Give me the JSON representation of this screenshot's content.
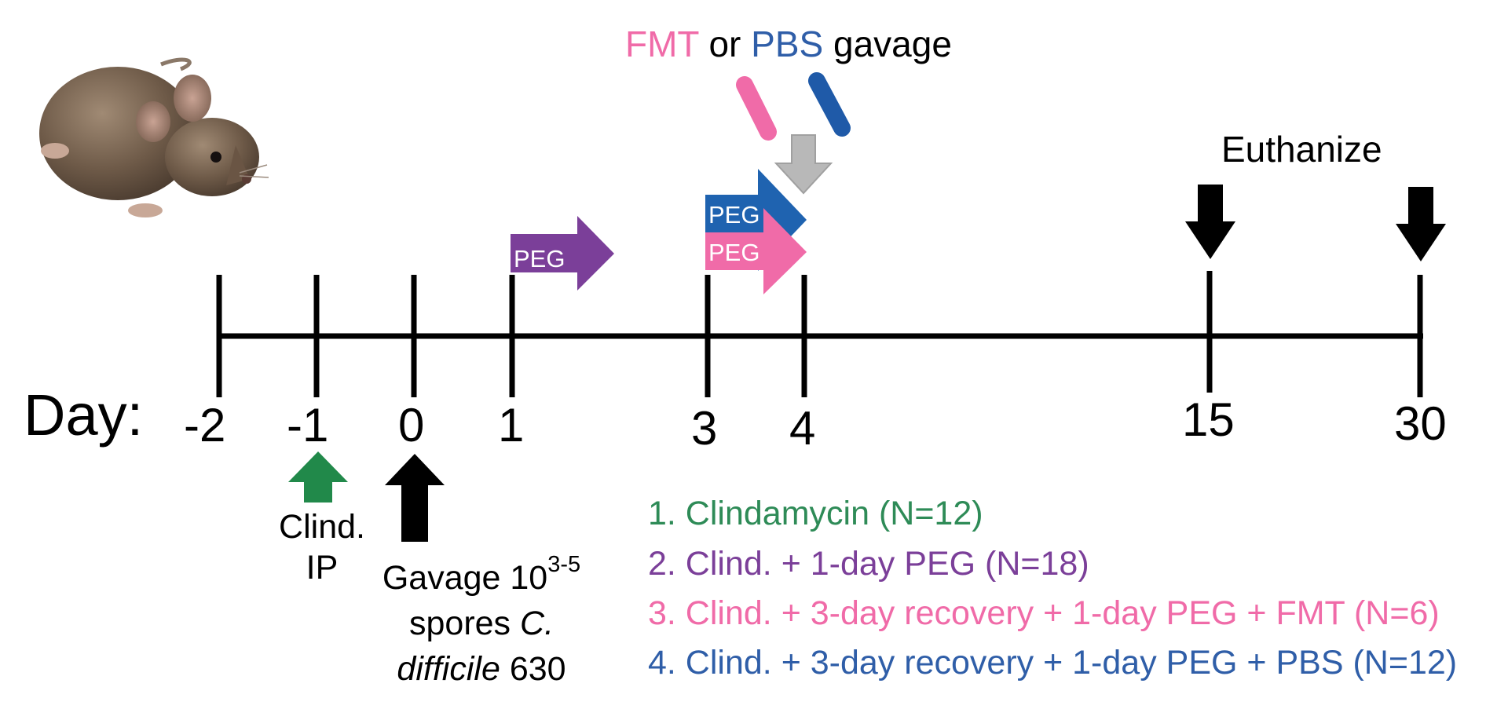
{
  "day_label": "Day:",
  "days": [
    "-2",
    "-1",
    "0",
    "1",
    "3",
    "4",
    "15",
    "30"
  ],
  "mouse_icon": "mouse-photo",
  "top_label": {
    "fmt": "FMT",
    "or": "or",
    "pbs": "PBS",
    "gavage": "gavage"
  },
  "euthanize_label": "Euthanize",
  "peg_label": "PEG",
  "clind": {
    "line1": "Clind.",
    "line2": "IP"
  },
  "gavage_note": {
    "w1": "Gavage 10",
    "sup": "3-5",
    "w2": "spores",
    "w3": "C.",
    "w4": "difficile",
    "w5": "630"
  },
  "legend": [
    {
      "text": "1. Clindamycin (N=12)",
      "color": "#2e8b57"
    },
    {
      "text": "2. Clind. + 1-day PEG (N=18)",
      "color": "#7b3f99"
    },
    {
      "text": "3. Clind. + 3-day recovery  + 1-day PEG + FMT (N=6)",
      "color": "#f06ba8"
    },
    {
      "text": "4. Clind. + 3-day recovery + 1-day PEG + PBS (N=12)",
      "color": "#2f5ea8"
    }
  ],
  "colors": {
    "green": "#21894a",
    "purple": "#7b3f99",
    "pink": "#f06ba8",
    "blue": "#1f63b0",
    "gray": "#b8b8b8",
    "black": "#000000"
  }
}
